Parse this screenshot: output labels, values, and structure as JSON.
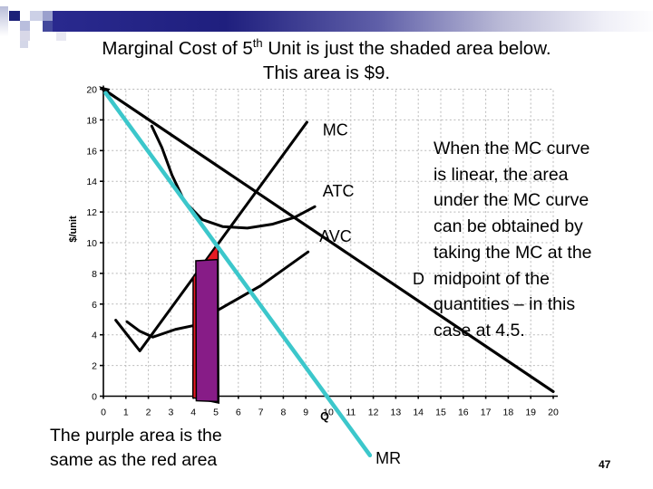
{
  "slide": {
    "title_line1_prefix": "Marginal Cost of 5",
    "title_line1_sup": "th",
    "title_line1_suffix": " Unit is just the shaded area below.",
    "title_line2": "This area is $9.",
    "page_number": "47"
  },
  "side_note": {
    "lines": [
      "When the MC curve",
      "is linear, the area",
      "under the MC curve",
      "can be obtained by",
      "taking the MC at the",
      "midpoint of the",
      "quantities – in this",
      "case at 4.5."
    ]
  },
  "bottom_note": {
    "lines": [
      "The purple area is the",
      "same as the red area"
    ]
  },
  "theme": {
    "banner_navy": "#1f1f7e",
    "mr_cyan": "#3cc7cb",
    "area_purple": "#871c87",
    "area_red": "#e81b23"
  },
  "chart_data": {
    "type": "line",
    "title": "",
    "xlabel": "Q",
    "ylabel": "$/unit",
    "xlim": [
      0,
      20
    ],
    "ylim": [
      0,
      20
    ],
    "x_ticks": [
      0,
      1,
      2,
      3,
      4,
      5,
      6,
      7,
      8,
      9,
      10,
      11,
      12,
      13,
      14,
      15,
      16,
      17,
      18,
      19,
      20
    ],
    "y_ticks": [
      0,
      2,
      4,
      6,
      8,
      10,
      12,
      14,
      16,
      18,
      20
    ],
    "grid": true,
    "series": [
      {
        "name": "MC",
        "color": "#000000",
        "width": 3,
        "layer": 1,
        "points": [
          [
            0.55,
            4.95
          ],
          [
            1.62,
            2.95
          ],
          [
            9.05,
            17.85
          ]
        ]
      },
      {
        "name": "ATC",
        "color": "#000000",
        "width": 3,
        "layer": 1,
        "points": [
          [
            2.15,
            17.6
          ],
          [
            2.6,
            16.2
          ],
          [
            3.05,
            14.4
          ],
          [
            3.6,
            12.7
          ],
          [
            4.4,
            11.5
          ],
          [
            5.3,
            11.05
          ],
          [
            6.4,
            10.95
          ],
          [
            7.5,
            11.2
          ],
          [
            8.5,
            11.65
          ],
          [
            9.4,
            12.35
          ]
        ]
      },
      {
        "name": "AVC",
        "color": "#000000",
        "width": 3,
        "layer": 1,
        "points": [
          [
            1.05,
            4.85
          ],
          [
            1.6,
            4.25
          ],
          [
            2.2,
            3.85
          ],
          [
            3.2,
            4.35
          ],
          [
            4.0,
            4.6
          ],
          [
            5.2,
            5.7
          ],
          [
            7.0,
            7.2
          ],
          [
            9.1,
            9.4
          ]
        ]
      },
      {
        "name": "D",
        "color": "#000000",
        "width": 3.2,
        "layer": 1,
        "arrow_start": true,
        "points": [
          [
            0,
            20
          ],
          [
            20,
            0.3
          ]
        ]
      },
      {
        "name": "MR",
        "color": "#3cc7cb",
        "width": 4.5,
        "layer": 3,
        "points": [
          [
            0.1,
            19.75
          ],
          [
            11.85,
            -3.85
          ]
        ]
      }
    ],
    "areas": [
      {
        "name": "mc-area-red",
        "color": "#e81b23",
        "layer": 2,
        "points": [
          [
            3.98,
            -0.1
          ],
          [
            3.99,
            7.75
          ],
          [
            5.1,
            9.93
          ],
          [
            5.13,
            -0.45
          ]
        ]
      },
      {
        "name": "midpoint-rect-purple",
        "color": "#871c87",
        "layer": 2,
        "points": [
          [
            4.13,
            -0.3
          ],
          [
            4.11,
            8.82
          ],
          [
            5.07,
            8.9
          ],
          [
            5.09,
            -0.35
          ]
        ]
      }
    ],
    "curve_labels": [
      {
        "text": "MC",
        "q": 9.75,
        "p": 17.0
      },
      {
        "text": "ATC",
        "q": 9.75,
        "p": 13.0
      },
      {
        "text": "AVC",
        "q": 9.6,
        "p": 10.05
      },
      {
        "text": "D",
        "q": 13.75,
        "p": 7.3
      },
      {
        "text": "MR",
        "q": 12.1,
        "p": -4.4
      }
    ]
  }
}
